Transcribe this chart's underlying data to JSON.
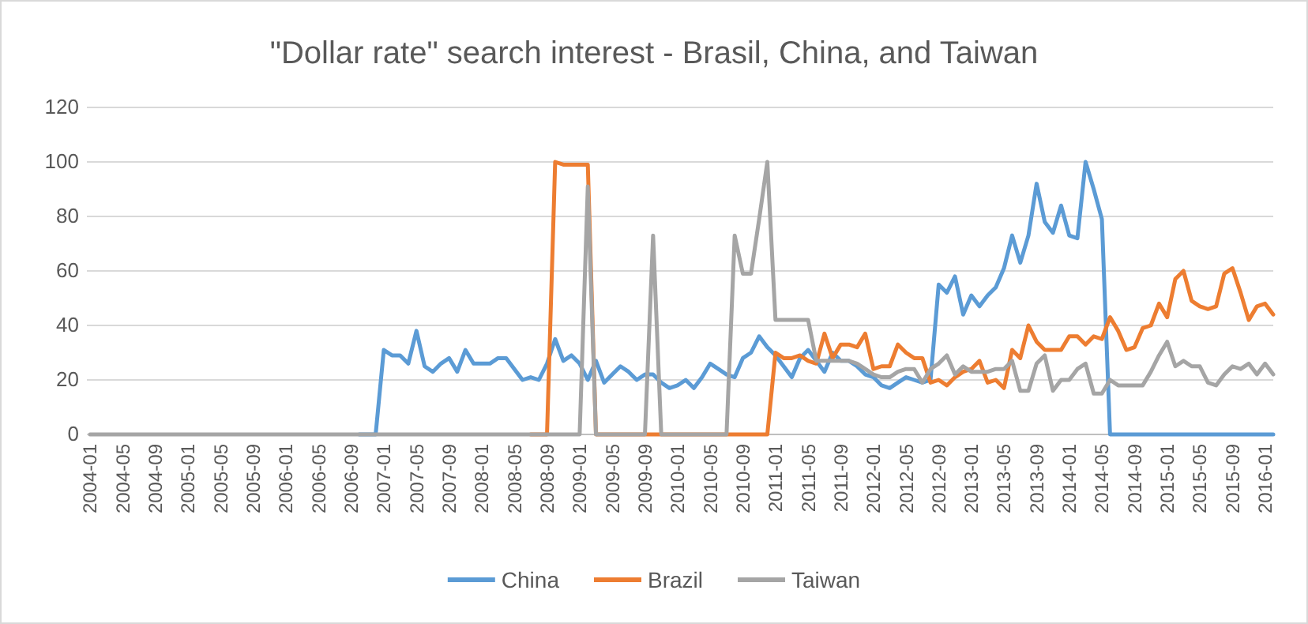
{
  "chart_data": {
    "type": "line",
    "title": "\"Dollar rate\" search interest - Brasil, China, and Taiwan",
    "categories": [
      "2004-01",
      null,
      null,
      null,
      "2004-05",
      null,
      null,
      null,
      "2004-09",
      null,
      null,
      null,
      "2005-01",
      null,
      null,
      null,
      "2005-05",
      null,
      null,
      null,
      "2005-09",
      null,
      null,
      null,
      "2006-01",
      null,
      null,
      null,
      "2006-05",
      null,
      null,
      null,
      "2006-09",
      null,
      null,
      null,
      "2007-01",
      null,
      null,
      null,
      "2007-05",
      null,
      null,
      null,
      "2007-09",
      null,
      null,
      null,
      "2008-01",
      null,
      null,
      null,
      "2008-05",
      null,
      null,
      null,
      "2008-09",
      null,
      null,
      null,
      "2009-01",
      null,
      null,
      null,
      "2009-05",
      null,
      null,
      null,
      "2009-09",
      null,
      null,
      null,
      "2010-01",
      null,
      null,
      null,
      "2010-05",
      null,
      null,
      null,
      "2010-09",
      null,
      null,
      null,
      "2011-01",
      null,
      null,
      null,
      "2011-05",
      null,
      null,
      null,
      "2011-09",
      null,
      null,
      null,
      "2012-01",
      null,
      null,
      null,
      "2012-05",
      null,
      null,
      null,
      "2012-09",
      null,
      null,
      null,
      "2013-01",
      null,
      null,
      null,
      "2013-05",
      null,
      null,
      null,
      "2013-09",
      null,
      null,
      null,
      "2014-01",
      null,
      null,
      null,
      "2014-05",
      null,
      null,
      null,
      "2014-09",
      null,
      null,
      null,
      "2015-01",
      null,
      null,
      null,
      "2015-05",
      null,
      null,
      null,
      "2015-09",
      null,
      null,
      null,
      "2016-01",
      null
    ],
    "series": [
      {
        "name": "China",
        "color": "#5b9bd5",
        "values": [
          null,
          null,
          null,
          null,
          null,
          null,
          null,
          null,
          null,
          null,
          null,
          null,
          null,
          null,
          null,
          null,
          null,
          null,
          null,
          null,
          null,
          null,
          null,
          null,
          null,
          null,
          null,
          null,
          null,
          null,
          null,
          null,
          null,
          0,
          0,
          0,
          31,
          29,
          29,
          26,
          38,
          25,
          23,
          26,
          28,
          23,
          31,
          26,
          26,
          26,
          28,
          28,
          24,
          20,
          21,
          20,
          26,
          35,
          27,
          29,
          26,
          20,
          27,
          19,
          22,
          25,
          23,
          20,
          22,
          22,
          19,
          17,
          18,
          20,
          17,
          21,
          26,
          24,
          22,
          21,
          28,
          30,
          36,
          32,
          29,
          25,
          21,
          28,
          31,
          27,
          23,
          30,
          27,
          27,
          25,
          22,
          21,
          18,
          17,
          19,
          21,
          20,
          19,
          20,
          55,
          52,
          58,
          44,
          51,
          47,
          51,
          54,
          61,
          73,
          63,
          73,
          92,
          78,
          74,
          84,
          73,
          72,
          100,
          90,
          79,
          0,
          0,
          0,
          0,
          0,
          0,
          0,
          0,
          0,
          0,
          0,
          0,
          0,
          0,
          0,
          0,
          0,
          0,
          0,
          0,
          0
        ]
      },
      {
        "name": "Brazil",
        "color": "#ed7d31",
        "values": [
          null,
          null,
          null,
          null,
          null,
          null,
          null,
          null,
          null,
          null,
          null,
          null,
          null,
          null,
          null,
          null,
          null,
          null,
          null,
          null,
          null,
          null,
          null,
          null,
          null,
          null,
          null,
          null,
          null,
          null,
          null,
          null,
          null,
          null,
          null,
          null,
          null,
          null,
          null,
          null,
          null,
          null,
          null,
          null,
          null,
          null,
          null,
          null,
          null,
          null,
          null,
          null,
          null,
          null,
          0,
          0,
          0,
          100,
          99,
          99,
          99,
          99,
          0,
          0,
          0,
          0,
          0,
          0,
          0,
          0,
          0,
          0,
          0,
          0,
          0,
          0,
          0,
          0,
          0,
          0,
          0,
          0,
          0,
          0,
          30,
          28,
          28,
          29,
          27,
          26,
          37,
          28,
          33,
          33,
          32,
          37,
          24,
          25,
          25,
          33,
          30,
          28,
          28,
          19,
          20,
          18,
          21,
          23,
          24,
          27,
          19,
          20,
          17,
          31,
          28,
          40,
          34,
          31,
          31,
          31,
          36,
          36,
          33,
          36,
          35,
          43,
          38,
          31,
          32,
          39,
          40,
          48,
          43,
          57,
          60,
          49,
          47,
          46,
          47,
          59,
          61,
          52,
          42,
          47,
          48,
          44
        ]
      },
      {
        "name": "Taiwan",
        "color": "#a5a5a5",
        "values": [
          0,
          0,
          0,
          0,
          0,
          0,
          0,
          0,
          0,
          0,
          0,
          0,
          0,
          0,
          0,
          0,
          0,
          0,
          0,
          0,
          0,
          0,
          0,
          0,
          0,
          0,
          0,
          0,
          0,
          0,
          0,
          0,
          0,
          0,
          0,
          0,
          0,
          0,
          0,
          0,
          0,
          0,
          0,
          0,
          0,
          0,
          0,
          0,
          0,
          0,
          0,
          0,
          0,
          0,
          0,
          0,
          0,
          0,
          0,
          0,
          0,
          91,
          0,
          0,
          0,
          0,
          0,
          0,
          0,
          73,
          0,
          0,
          0,
          0,
          0,
          0,
          0,
          0,
          0,
          73,
          59,
          59,
          79,
          100,
          42,
          42,
          42,
          42,
          42,
          27,
          27,
          27,
          27,
          27,
          26,
          24,
          22,
          21,
          21,
          23,
          24,
          24,
          19,
          24,
          26,
          29,
          22,
          25,
          23,
          23,
          23,
          24,
          24,
          27,
          16,
          16,
          26,
          29,
          16,
          20,
          20,
          24,
          26,
          15,
          15,
          20,
          18,
          18,
          18,
          18,
          23,
          29,
          34,
          25,
          27,
          25,
          25,
          19,
          18,
          22,
          25,
          24,
          26,
          22,
          26,
          22
        ]
      }
    ],
    "ylim": [
      0,
      120
    ],
    "yticks": [
      0,
      20,
      40,
      60,
      80,
      100,
      120
    ],
    "grid": "y",
    "legend": "bottom",
    "marker": "none",
    "line_style": "solid"
  }
}
